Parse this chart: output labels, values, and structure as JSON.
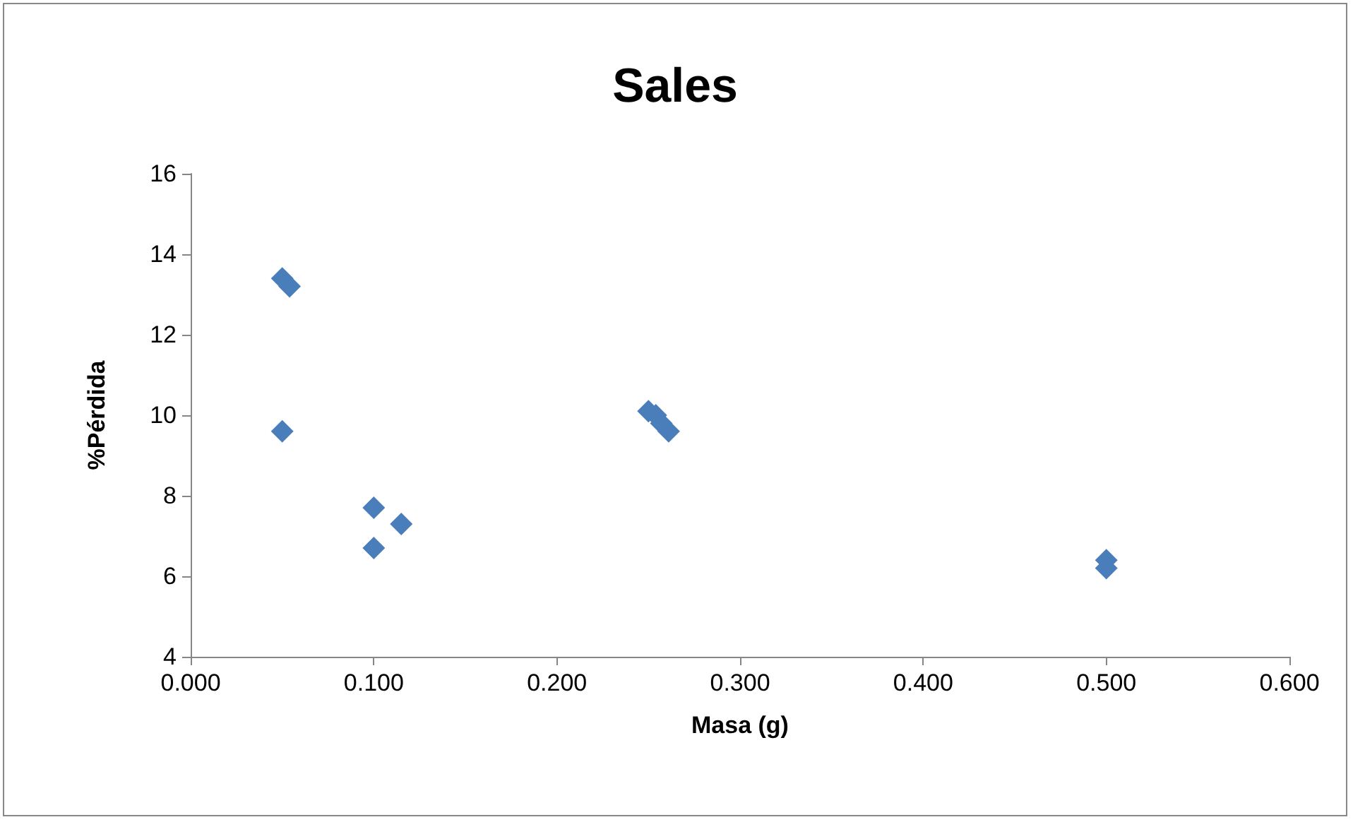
{
  "chart_data": {
    "type": "scatter",
    "title": "Sales",
    "xlabel": "Masa (g)",
    "ylabel": "%Pérdida",
    "x": [
      0.05,
      0.054,
      0.05,
      0.1,
      0.1,
      0.115,
      0.25,
      0.254,
      0.257,
      0.261,
      0.5,
      0.5
    ],
    "values": [
      13.4,
      13.2,
      9.6,
      7.7,
      6.7,
      7.3,
      10.1,
      10.0,
      9.8,
      9.6,
      6.4,
      6.2
    ],
    "color": "#4a7ebb",
    "marker": "diamond",
    "xlim": [
      0,
      0.6
    ],
    "xticks": [
      {
        "value": 0,
        "label": "0.000"
      },
      {
        "value": 0.1,
        "label": "0.100"
      },
      {
        "value": 0.2,
        "label": "0.200"
      },
      {
        "value": 0.3,
        "label": "0.300"
      },
      {
        "value": 0.4,
        "label": "0.400"
      },
      {
        "value": 0.5,
        "label": "0.500"
      },
      {
        "value": 0.6,
        "label": "0.600"
      }
    ],
    "ylim": [
      4,
      16
    ],
    "yticks": [
      4,
      6,
      8,
      10,
      12,
      14,
      16
    ],
    "grid": false
  }
}
